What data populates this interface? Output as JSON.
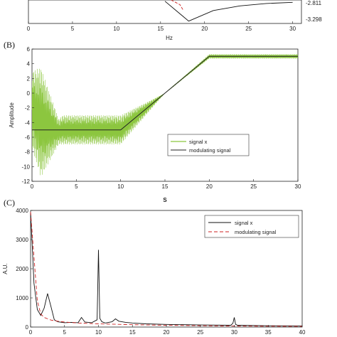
{
  "panels": {
    "a": {
      "xlabel": "Hz",
      "right_labels": [
        "-2.811",
        "-3.298"
      ]
    },
    "b": {
      "label": "(B)",
      "xlabel": "S",
      "ylabel": "Amplitude"
    },
    "c": {
      "label": "(C)",
      "ylabel": "A.U."
    }
  },
  "chart_data": [
    {
      "type": "line",
      "panel": "A (partial)",
      "xlabel": "Hz",
      "xlim": [
        0,
        31
      ],
      "x_ticks": [
        0,
        5,
        10,
        15,
        20,
        25,
        30
      ],
      "annotations": [
        "-2.811",
        "-3.298"
      ],
      "series": [
        {
          "color": "#111111",
          "x": [
            15.5,
            18.2,
            21,
            24,
            27,
            30
          ],
          "y": [
            0.95,
            0.1,
            0.55,
            0.75,
            0.85,
            0.9
          ]
        },
        {
          "color": "#cc2222",
          "style": "dashed",
          "x": [
            16.2,
            17.2,
            17.6
          ],
          "y": [
            1.0,
            0.8,
            0.55
          ]
        }
      ]
    },
    {
      "type": "line",
      "panel": "B",
      "xlabel": "S",
      "ylabel": "Amplitude",
      "xlim": [
        0,
        30
      ],
      "ylim": [
        -12,
        6
      ],
      "x_ticks": [
        0,
        5,
        10,
        15,
        20,
        25,
        30
      ],
      "y_ticks": [
        -12,
        -10,
        -8,
        -6,
        -4,
        -2,
        0,
        2,
        4,
        6
      ],
      "legend": "center-right",
      "series": [
        {
          "name": "signal x",
          "color": "#8cc63f",
          "envelope": {
            "x": [
              0,
              1,
              3,
              3.5,
              10,
              15,
              20,
              30
            ],
            "upper": [
              3,
              3.5,
              -3.5,
              -3,
              -3,
              0,
              5.3,
              5.3
            ],
            "lower": [
              -7.5,
              -11.5,
              -7,
              -7,
              -7,
              0,
              4.7,
              4.7
            ]
          }
        },
        {
          "name": "modulating signal",
          "color": "#222222",
          "x": [
            0,
            10,
            15,
            20,
            30
          ],
          "y": [
            -5,
            -5,
            0,
            5,
            5
          ]
        }
      ]
    },
    {
      "type": "line",
      "panel": "C",
      "ylabel": "A.U.",
      "xlim": [
        0,
        40
      ],
      "ylim": [
        0,
        4000
      ],
      "x_ticks": [
        0,
        5,
        10,
        15,
        20,
        25,
        30,
        35,
        40
      ],
      "y_ticks": [
        0,
        1000,
        2000,
        3000,
        4000
      ],
      "legend": "top-right",
      "series": [
        {
          "name": "signal x",
          "color": "#111111",
          "x": [
            0,
            0.2,
            0.5,
            1,
            1.5,
            2,
            2.5,
            3,
            3.5,
            4,
            5,
            6,
            7,
            7.5,
            8,
            9,
            9.8,
            10,
            10.2,
            10.5,
            11,
            12,
            12.5,
            13,
            14,
            15,
            17,
            20,
            25,
            29.5,
            29.8,
            30,
            30.2,
            30.5,
            35,
            40
          ],
          "y": [
            3950,
            3000,
            1500,
            600,
            400,
            650,
            1150,
            700,
            250,
            180,
            150,
            160,
            150,
            330,
            170,
            150,
            250,
            2650,
            300,
            180,
            140,
            180,
            280,
            200,
            160,
            140,
            110,
            90,
            70,
            60,
            130,
            330,
            90,
            60,
            45,
            40
          ]
        },
        {
          "name": "modulating signal",
          "color": "#cc2222",
          "style": "dashed",
          "x": [
            0,
            0.5,
            1,
            1.5,
            2,
            3,
            4,
            5,
            7,
            10,
            15,
            20,
            30,
            40
          ],
          "y": [
            3950,
            2400,
            900,
            450,
            330,
            240,
            200,
            170,
            140,
            110,
            80,
            60,
            35,
            25
          ]
        }
      ]
    }
  ]
}
